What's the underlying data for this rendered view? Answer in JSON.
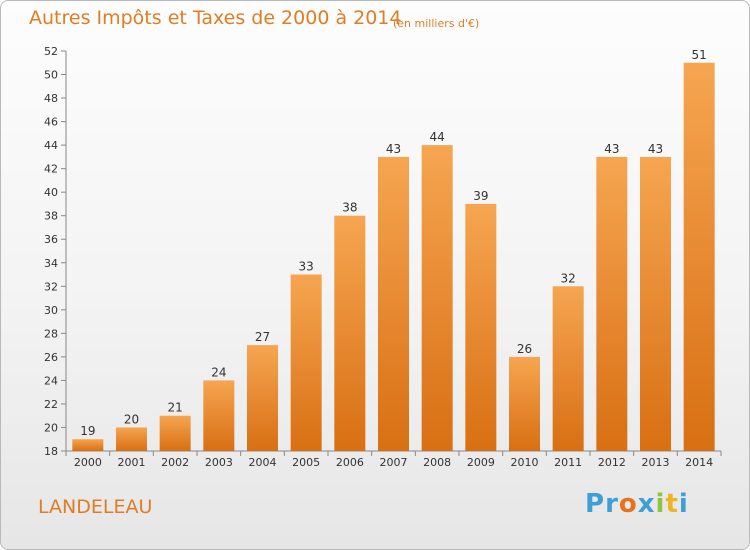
{
  "title": "Autres Impôts et Taxes de 2000 à 2014",
  "subtitle": "(en milliers d'€)",
  "commune": "LANDELEAU",
  "logo": {
    "letters": [
      "P",
      "r",
      "o",
      "x",
      "i",
      "t",
      "i"
    ],
    "colors": [
      "#3d9fd6",
      "#3d9fd6",
      "#e8721c",
      "#3d9fd6",
      "#8cc63f",
      "#f0b323",
      "#3d9fd6"
    ]
  },
  "colors": {
    "accent": "#e07d24",
    "bar_light": "#f6a551",
    "bar_dark": "#d86f13"
  },
  "chart_data": {
    "type": "bar",
    "categories": [
      "2000",
      "2001",
      "2002",
      "2003",
      "2004",
      "2005",
      "2006",
      "2007",
      "2008",
      "2009",
      "2010",
      "2011",
      "2012",
      "2013",
      "2014"
    ],
    "values": [
      19,
      20,
      21,
      24,
      27,
      33,
      38,
      43,
      44,
      39,
      26,
      32,
      43,
      43,
      51
    ],
    "ylim": [
      18,
      52
    ],
    "yticks": [
      18,
      20,
      22,
      24,
      26,
      28,
      30,
      32,
      34,
      36,
      38,
      40,
      42,
      44,
      46,
      48,
      50,
      52
    ],
    "grid": false
  }
}
